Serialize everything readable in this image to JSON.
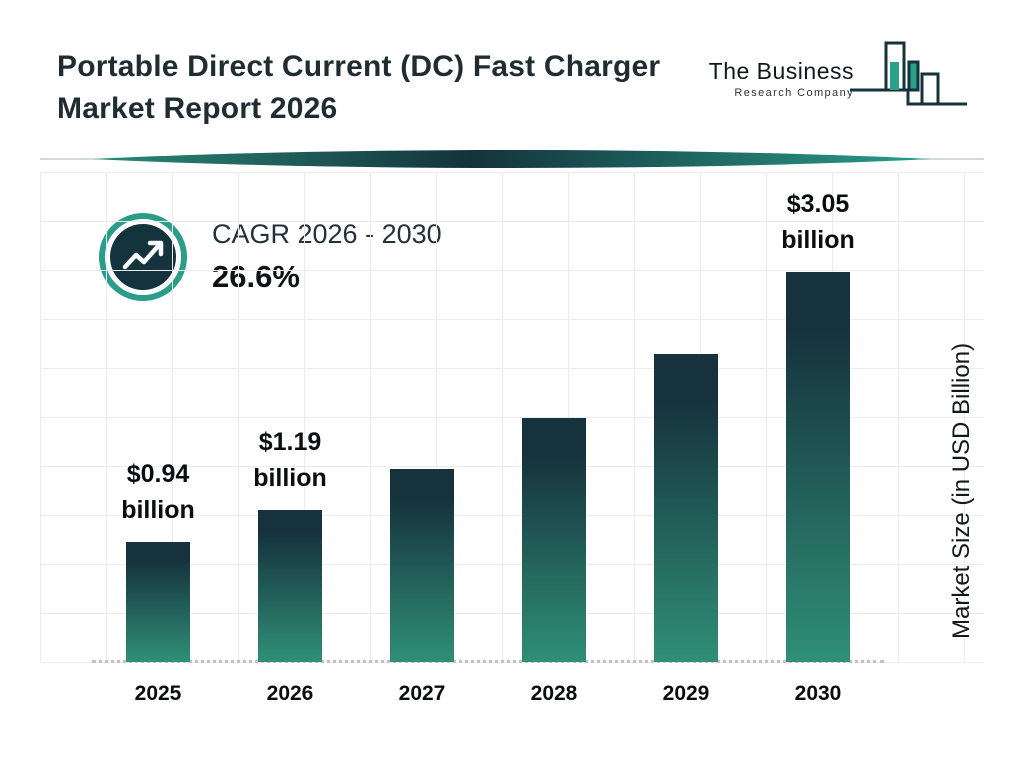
{
  "header": {
    "title_line1": "Portable Direct Current (DC) Fast Charger",
    "title_line2": "Market Report 2026"
  },
  "logo": {
    "name_line1": "The Business",
    "name_line2": "Research Company",
    "icon": "bar-chart-logo-icon"
  },
  "cagr": {
    "icon": "trending-up-icon",
    "label": "CAGR 2026 - 2030",
    "value": "26.6%"
  },
  "chart_data": {
    "type": "bar",
    "title": "Portable Direct Current (DC) Fast Charger Market Report 2026",
    "categories": [
      "2025",
      "2026",
      "2027",
      "2028",
      "2029",
      "2030"
    ],
    "values": [
      0.94,
      1.19,
      1.51,
      1.91,
      2.41,
      3.05
    ],
    "bar_labels": [
      {
        "line1": "$0.94",
        "line2": "billion"
      },
      {
        "line1": "$1.19",
        "line2": "billion"
      },
      null,
      null,
      null,
      {
        "line1": "$3.05",
        "line2": "billion"
      }
    ],
    "xlabel": "",
    "ylabel": "Market Size (in USD Billion)",
    "ylim": [
      0,
      3.2
    ],
    "grid": true,
    "legend": false,
    "colors": {
      "bar_top": "#16323d",
      "bar_bottom": "#2f8f77"
    }
  },
  "colors": {
    "title_text": "#1f2d33",
    "accent_teal": "#2a9d8a",
    "dark_navy": "#14333d",
    "grid": "#ececec"
  }
}
